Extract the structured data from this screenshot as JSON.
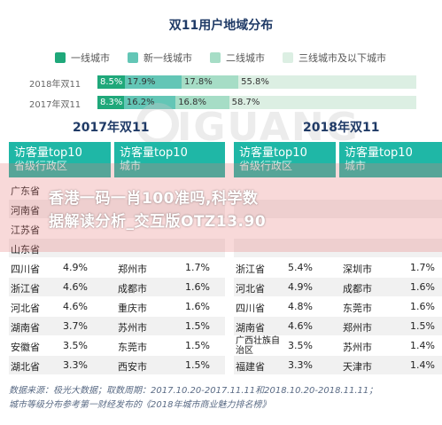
{
  "title": "双11用户地域分布",
  "colors": {
    "tier1": "#1fa87a",
    "new_tier1": "#63c6b6",
    "tier2": "#a6ddc6",
    "tier3": "#dcefe3",
    "header": "#1fb7a6",
    "title": "#1f3a66"
  },
  "chart_data": [
    {
      "type": "bar",
      "stacked": true,
      "orientation": "horizontal",
      "title": "双11用户地域分布",
      "categories": [
        "2018年双11",
        "2017年双11"
      ],
      "series": [
        {
          "name": "一线城市",
          "values": [
            8.5,
            8.3
          ],
          "labels": [
            "8.5%",
            "8.3%"
          ]
        },
        {
          "name": "新一线城市",
          "values": [
            17.9,
            16.2
          ],
          "labels": [
            "17.9%",
            "16.2%"
          ]
        },
        {
          "name": "二线城市",
          "values": [
            17.8,
            16.8
          ],
          "labels": [
            "17.8%",
            "16.8%"
          ]
        },
        {
          "name": "三线城市及以下城市",
          "values": [
            55.8,
            58.7
          ],
          "labels": [
            "55.8%",
            "58.7%"
          ]
        }
      ],
      "legend": "top"
    },
    {
      "type": "table",
      "title": "2017年双11",
      "columns": [
        "访客量top10省级行政区",
        "",
        "访客量top10城市",
        ""
      ],
      "rows": [
        [
          "广东省",
          "",
          "",
          ""
        ],
        [
          "河南省",
          "",
          "",
          ""
        ],
        [
          "江苏省",
          "",
          "",
          ""
        ],
        [
          "山东省",
          "",
          "",
          ""
        ],
        [
          "四川省",
          "4.9%",
          "郑州市",
          "1.7%"
        ],
        [
          "浙江省",
          "4.6%",
          "成都市",
          "1.6%"
        ],
        [
          "河北省",
          "4.6%",
          "重庆市",
          "1.6%"
        ],
        [
          "湖南省",
          "3.7%",
          "苏州市",
          "1.5%"
        ],
        [
          "安徽省",
          "3.5%",
          "东莞市",
          "1.5%"
        ],
        [
          "湖北省",
          "3.3%",
          "西安市",
          "1.5%"
        ]
      ]
    },
    {
      "type": "table",
      "title": "2018年双11",
      "columns": [
        "访客量top10省级行政区",
        "",
        "访客量top10城市",
        ""
      ],
      "rows": [
        [
          "",
          "",
          "",
          ""
        ],
        [
          "",
          "",
          "",
          ""
        ],
        [
          "",
          "",
          "",
          ""
        ],
        [
          "",
          "",
          "",
          ""
        ],
        [
          "浙江省",
          "5.4%",
          "深圳市",
          "1.7%"
        ],
        [
          "河北省",
          "4.9%",
          "成都市",
          "1.6%"
        ],
        [
          "四川省",
          "4.8%",
          "东莞市",
          "1.6%"
        ],
        [
          "湖南省",
          "4.6%",
          "郑州市",
          "1.5%"
        ],
        [
          "广西壮族自治区",
          "3.5%",
          "苏州市",
          "1.4%"
        ],
        [
          "福建省",
          "3.3%",
          "天津市",
          "1.4%"
        ]
      ]
    }
  ],
  "tables": {
    "left": {
      "title": "2017年双11",
      "header_province_line1": "访客量top10",
      "header_province_line2": "省级行政区",
      "header_city_line1": "访客量top10",
      "header_city_line2": "城市"
    },
    "right": {
      "title": "2018年双11",
      "header_province_line1": "访客量top10",
      "header_province_line2": "省级行政区",
      "header_city_line1": "访客量top10",
      "header_city_line2": "城市"
    }
  },
  "watermark": {
    "logo_text": "IGUANG",
    "overlay_line1": "香港一码一肖100准吗,科学数",
    "overlay_line2": "据解读分析_交互版OTZ13.90"
  },
  "footer": {
    "line1": "数据来源：极光大数据；取数周期：2017.10.20-2017.11.11和2018.10.20-2018.11.11；",
    "line2": "城市等级分布参考第一财经发布的《2018年城市商业魅力排名榜》"
  }
}
